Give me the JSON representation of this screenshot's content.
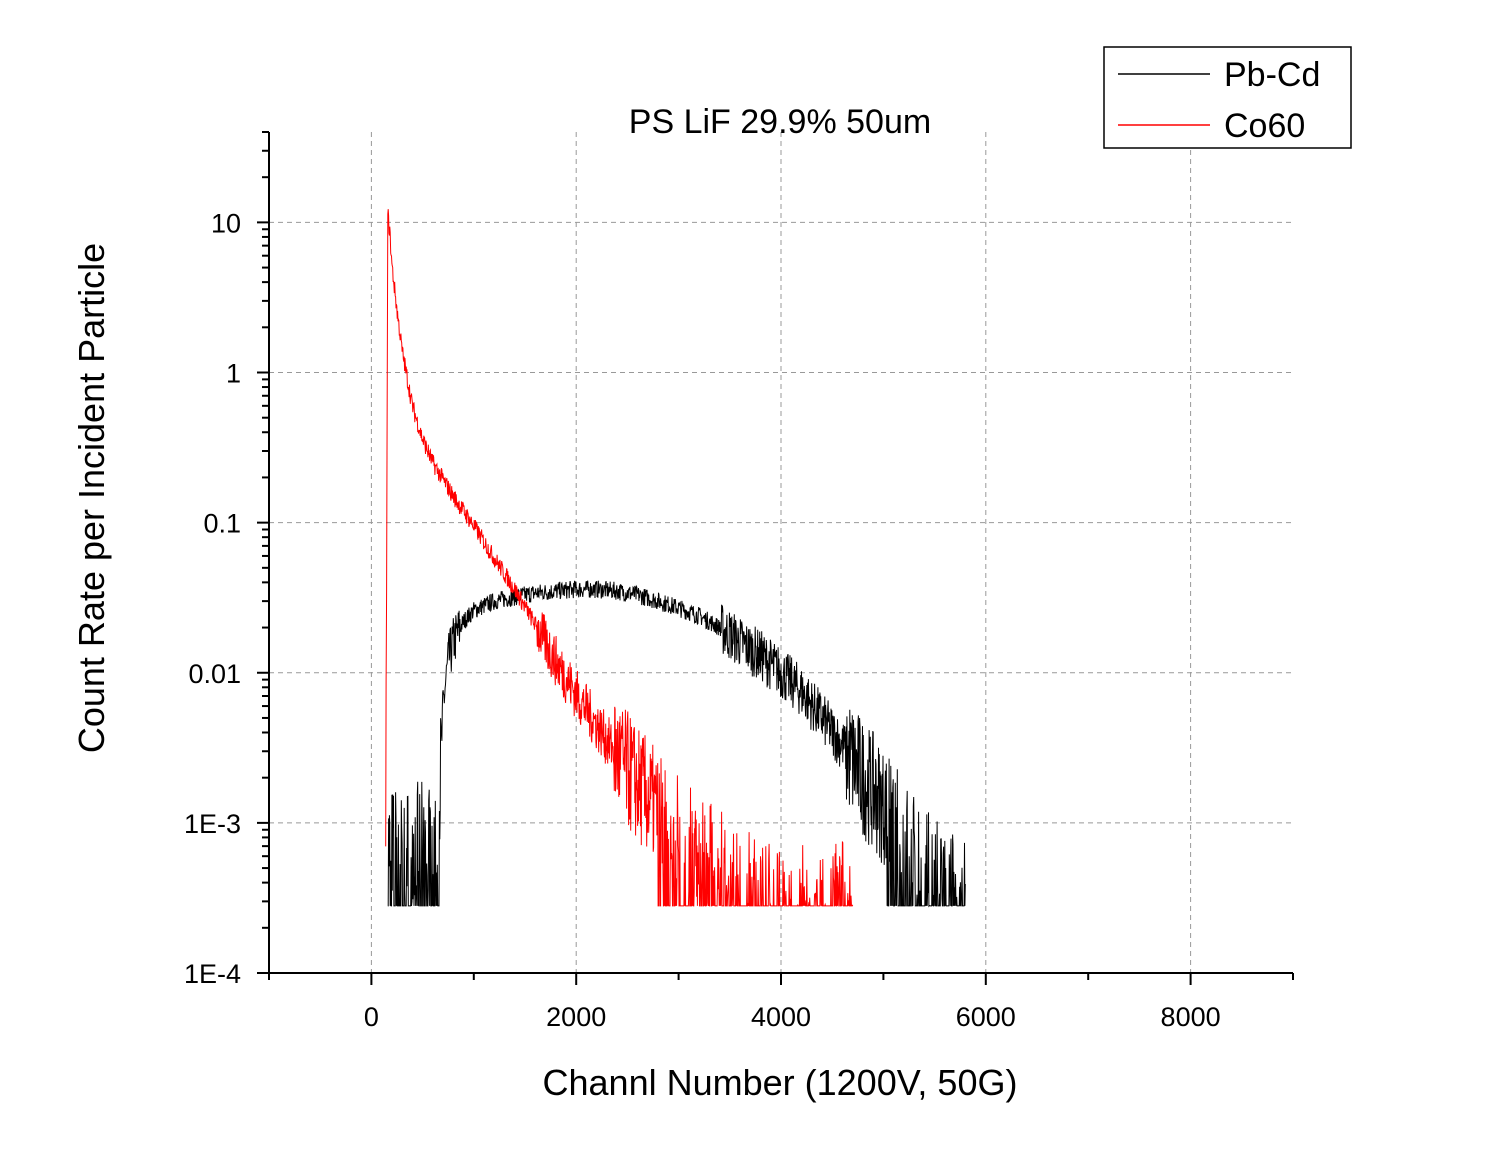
{
  "chart_data": {
    "type": "line",
    "title": "PS LiF 29.9% 50um",
    "xlabel": "Channl Number (1200V, 50G)",
    "ylabel": "Count Rate per Incident Particle",
    "xlim": [
      -1000,
      9000
    ],
    "ylim": [
      0.0001,
      40
    ],
    "yscale": "log",
    "grid": true,
    "legend_position": "top-right",
    "x_ticks": [
      0,
      2000,
      4000,
      6000,
      8000
    ],
    "x_tick_labels": [
      "0",
      "2000",
      "4000",
      "6000",
      "8000"
    ],
    "y_ticks": [
      0.0001,
      0.001,
      0.01,
      0.1,
      1,
      10
    ],
    "y_tick_labels": [
      "1E-4",
      "1E-3",
      "0.01",
      "0.1",
      "1",
      "10"
    ],
    "series": [
      {
        "name": "Pb-Cd",
        "color": "#000000",
        "x": [
          160,
          650,
          700,
          750,
          800,
          900,
          1000,
          1200,
          1400,
          1600,
          1800,
          2000,
          2200,
          2400,
          2600,
          2800,
          3000,
          3200,
          3400,
          3600,
          3800,
          4000,
          4200,
          4400,
          4600,
          4800,
          5000,
          5200,
          5400,
          5600,
          5800
        ],
        "values": [
          0.0007,
          0.0008,
          0.006,
          0.012,
          0.016,
          0.022,
          0.026,
          0.03,
          0.032,
          0.034,
          0.035,
          0.036,
          0.036,
          0.035,
          0.033,
          0.03,
          0.027,
          0.024,
          0.02,
          0.016,
          0.013,
          0.01,
          0.0075,
          0.005,
          0.0033,
          0.002,
          0.0013,
          0.0008,
          0.0005,
          0.0004,
          0.0003
        ]
      },
      {
        "name": "Co60",
        "color": "#ff0000",
        "x": [
          140,
          150,
          160,
          180,
          200,
          250,
          300,
          400,
          500,
          600,
          800,
          1000,
          1200,
          1400,
          1600,
          1800,
          2000,
          2200,
          2400,
          2600,
          2800,
          3000,
          3200,
          3400,
          3600,
          3800,
          4000,
          4700
        ],
        "values": [
          0.001,
          0.1,
          11.5,
          8.5,
          5.2,
          2.6,
          1.4,
          0.6,
          0.36,
          0.25,
          0.15,
          0.095,
          0.058,
          0.036,
          0.021,
          0.012,
          0.0072,
          0.0045,
          0.0028,
          0.0018,
          0.0012,
          0.0009,
          0.0007,
          0.0005,
          0.0004,
          0.0003,
          0.0003,
          0.0003
        ]
      }
    ]
  }
}
